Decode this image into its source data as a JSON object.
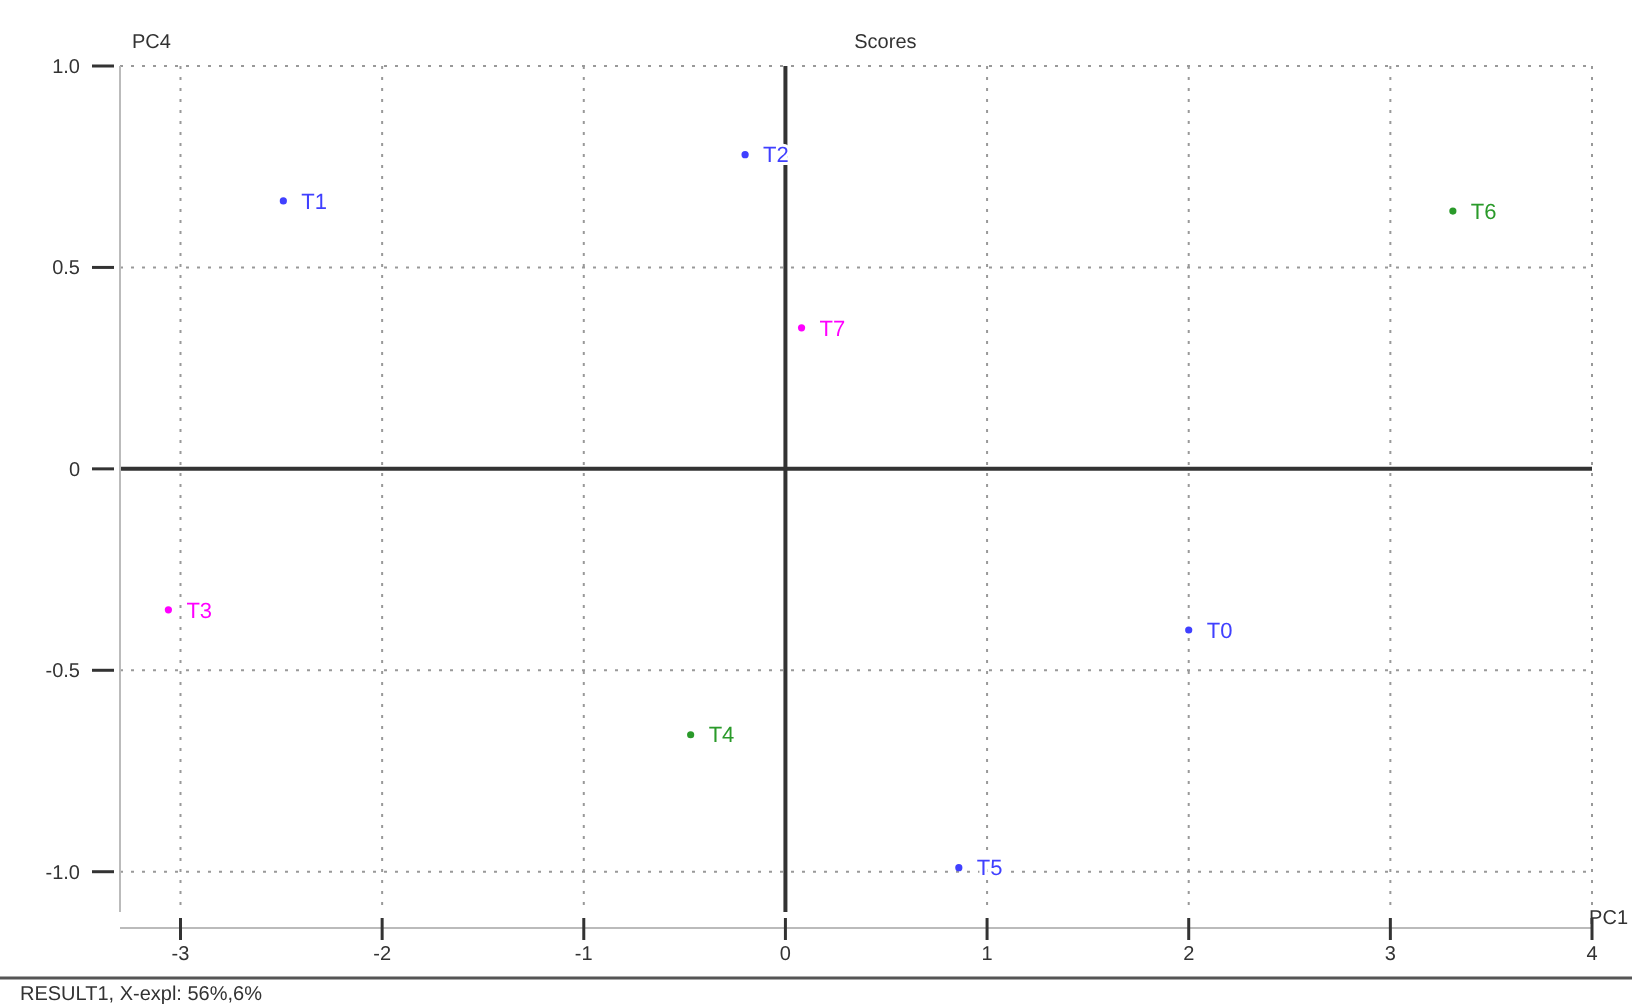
{
  "chart_data": {
    "type": "scatter",
    "title": "Scores",
    "xlabel": "PC1",
    "ylabel": "PC4",
    "xlim": [
      -3.3,
      4
    ],
    "ylim": [
      -1.1,
      1.0
    ],
    "xticks": [
      -3,
      -2,
      -1,
      0,
      1,
      2,
      3,
      4
    ],
    "yticks": [
      {
        "value": -1,
        "label": "-1.0"
      },
      {
        "value": -0.5,
        "label": "-0.5"
      },
      0,
      {
        "value": 0.5,
        "label": "0.5"
      },
      {
        "value": 1,
        "label": "1.0"
      }
    ],
    "grid": true,
    "marker": "circle",
    "series": [
      {
        "color": "#4040ff",
        "x": [
          -2.49,
          -0.2,
          0.86,
          2.0
        ],
        "values": [
          0.665,
          0.78,
          -0.99,
          -0.4
        ]
      },
      {
        "color": "#2a9a2a",
        "x": [
          -0.47,
          3.31
        ],
        "values": [
          -0.66,
          0.64
        ]
      },
      {
        "color": "#ff00ff",
        "x": [
          -3.06,
          0.08
        ],
        "values": [
          -0.35,
          0.35
        ]
      }
    ],
    "annotations": [
      {
        "text": "T1",
        "x": -2.49,
        "y": 0.665
      },
      {
        "text": "T2",
        "x": -0.2,
        "y": 0.78
      },
      {
        "text": "T5",
        "x": 0.86,
        "y": -0.99
      },
      {
        "text": "T0",
        "x": 2.0,
        "y": -0.4
      },
      {
        "text": "T4",
        "x": -0.47,
        "y": -0.66
      },
      {
        "text": "T6",
        "x": 3.31,
        "y": 0.64
      },
      {
        "text": "T3",
        "x": -3.06,
        "y": -0.35
      },
      {
        "text": "T7",
        "x": 0.08,
        "y": 0.35
      },
      "RESULT1, X-expl: 56%,6%"
    ]
  }
}
